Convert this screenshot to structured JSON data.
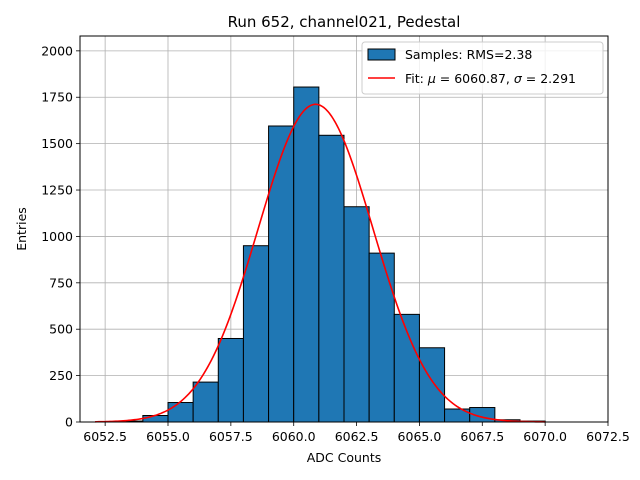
{
  "chart_data": {
    "type": "bar",
    "title": "Run 652, channel021, Pedestal",
    "xlabel": "ADC Counts",
    "ylabel": "Entries",
    "xlim": [
      6051.5,
      6072.5
    ],
    "ylim": [
      0,
      2080
    ],
    "grid": true,
    "legend_position": "top-right",
    "x_ticks": [
      6052.5,
      6055.0,
      6057.5,
      6060.0,
      6062.5,
      6065.0,
      6067.5,
      6070.0,
      6072.5
    ],
    "x_tick_labels": [
      "6052.5",
      "6055.0",
      "6057.5",
      "6060.0",
      "6062.5",
      "6065.0",
      "6067.5",
      "6070.0",
      "6072.5"
    ],
    "y_ticks": [
      0,
      250,
      500,
      750,
      1000,
      1250,
      1500,
      1750,
      2000
    ],
    "y_tick_labels": [
      "0",
      "250",
      "500",
      "750",
      "1000",
      "1250",
      "1500",
      "1750",
      "2000"
    ],
    "bin_edges": [
      6053,
      6054,
      6055,
      6056,
      6057,
      6058,
      6059,
      6060,
      6061,
      6062,
      6063,
      6064,
      6065,
      6066,
      6067,
      6068,
      6069,
      6070
    ],
    "bin_counts": [
      5,
      35,
      105,
      215,
      450,
      950,
      1595,
      1805,
      1545,
      1160,
      910,
      580,
      400,
      70,
      78,
      12,
      5
    ],
    "series": [
      {
        "name": "Samples: RMS=2.38",
        "kind": "histogram",
        "color": "#1f77b4",
        "edge_color": "#000000"
      },
      {
        "name": "Fit: μ = 6060.87, σ = 2.291",
        "name_parts": [
          "Fit: ",
          "μ",
          " = 6060.87, ",
          "σ",
          " = 2.291"
        ],
        "kind": "gaussian-fit",
        "color": "#ff0000",
        "mu": 6060.87,
        "sigma": 2.291,
        "amplitude": 1712,
        "x_range": [
          6052.1,
          6070.0
        ]
      }
    ]
  }
}
